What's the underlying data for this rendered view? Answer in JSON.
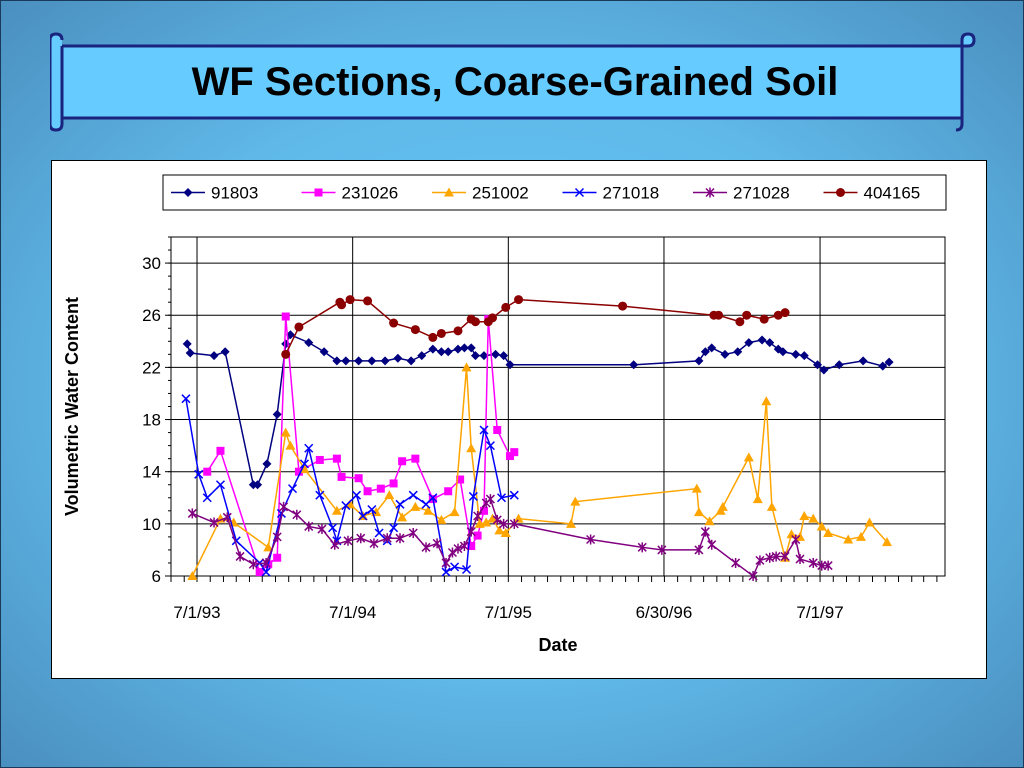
{
  "slide": {
    "title": "WF Sections, Coarse-Grained Soil"
  },
  "chart_data": {
    "type": "line",
    "title": "",
    "xlabel": "Date",
    "ylabel": "Volumetric Water Content",
    "ylim": [
      6,
      32
    ],
    "yticks": [
      6,
      10,
      14,
      18,
      22,
      26,
      30
    ],
    "xlim": [
      "1993-05-01",
      "1998-04-20"
    ],
    "xticks": [
      {
        "date": "1993-07-01",
        "label": "7/1/93"
      },
      {
        "date": "1994-07-01",
        "label": "7/1/94"
      },
      {
        "date": "1995-07-01",
        "label": "7/1/95"
      },
      {
        "date": "1996-06-30",
        "label": "6/30/96"
      },
      {
        "date": "1997-07-01",
        "label": "7/1/97"
      }
    ],
    "grid": true,
    "legend": "top",
    "series": [
      {
        "name": "91803",
        "color": "#000080",
        "marker": "diamond",
        "points": [
          [
            "1993-06-08",
            23.8
          ],
          [
            "1993-06-15",
            23.1
          ],
          [
            "1993-08-10",
            22.9
          ],
          [
            "1993-09-05",
            23.2
          ],
          [
            "1993-11-10",
            13.0
          ],
          [
            "1993-11-20",
            13.0
          ],
          [
            "1993-12-12",
            14.6
          ],
          [
            "1994-01-05",
            18.4
          ],
          [
            "1994-01-25",
            23.8
          ],
          [
            "1994-02-05",
            24.5
          ],
          [
            "1994-03-20",
            23.9
          ],
          [
            "1994-04-25",
            23.2
          ],
          [
            "1994-05-25",
            22.5
          ],
          [
            "1994-06-15",
            22.5
          ],
          [
            "1994-07-15",
            22.5
          ],
          [
            "1994-08-15",
            22.5
          ],
          [
            "1994-09-15",
            22.5
          ],
          [
            "1994-10-15",
            22.7
          ],
          [
            "1994-11-15",
            22.5
          ],
          [
            "1994-12-10",
            22.9
          ],
          [
            "1995-01-05",
            23.4
          ],
          [
            "1995-01-25",
            23.2
          ],
          [
            "1995-02-10",
            23.2
          ],
          [
            "1995-03-05",
            23.4
          ],
          [
            "1995-03-20",
            23.5
          ],
          [
            "1995-04-05",
            23.5
          ],
          [
            "1995-04-15",
            22.9
          ],
          [
            "1995-05-05",
            22.9
          ],
          [
            "1995-06-01",
            23.0
          ],
          [
            "1995-06-20",
            22.9
          ],
          [
            "1995-07-05",
            22.2
          ],
          [
            "1996-04-20",
            22.2
          ],
          [
            "1996-09-20",
            22.5
          ],
          [
            "1996-10-05",
            23.2
          ],
          [
            "1996-10-20",
            23.5
          ],
          [
            "1996-11-20",
            23.0
          ],
          [
            "1996-12-20",
            23.2
          ],
          [
            "1997-01-15",
            23.9
          ],
          [
            "1997-02-15",
            24.1
          ],
          [
            "1997-03-05",
            23.9
          ],
          [
            "1997-03-25",
            23.4
          ],
          [
            "1997-04-05",
            23.2
          ],
          [
            "1997-05-05",
            23.0
          ],
          [
            "1997-05-25",
            22.9
          ],
          [
            "1997-06-25",
            22.2
          ],
          [
            "1997-07-10",
            21.8
          ],
          [
            "1997-08-15",
            22.2
          ],
          [
            "1997-10-10",
            22.5
          ],
          [
            "1997-11-25",
            22.1
          ],
          [
            "1997-12-10",
            22.4
          ]
        ]
      },
      {
        "name": "231026",
        "color": "#ff00ff",
        "marker": "square",
        "points": [
          [
            "1993-07-25",
            14.0
          ],
          [
            "1993-08-25",
            15.6
          ],
          [
            "1993-11-25",
            6.3
          ],
          [
            "1993-12-15",
            6.9
          ],
          [
            "1994-01-05",
            7.4
          ],
          [
            "1994-01-25",
            25.9
          ],
          [
            "1994-02-25",
            14.0
          ],
          [
            "1994-04-15",
            14.9
          ],
          [
            "1994-05-25",
            15.0
          ],
          [
            "1994-06-05",
            13.6
          ],
          [
            "1994-07-15",
            13.5
          ],
          [
            "1994-08-05",
            12.5
          ],
          [
            "1994-09-05",
            12.7
          ],
          [
            "1994-10-05",
            13.1
          ],
          [
            "1994-10-25",
            14.8
          ],
          [
            "1994-11-25",
            15.0
          ],
          [
            "1995-01-05",
            11.9
          ],
          [
            "1995-02-10",
            12.5
          ],
          [
            "1995-03-10",
            13.4
          ],
          [
            "1995-04-05",
            8.3
          ],
          [
            "1995-04-20",
            9.1
          ],
          [
            "1995-05-05",
            11.0
          ],
          [
            "1995-05-15",
            25.7
          ],
          [
            "1995-06-05",
            17.2
          ],
          [
            "1995-07-05",
            15.2
          ],
          [
            "1995-07-15",
            15.5
          ]
        ]
      },
      {
        "name": "251002",
        "color": "#ffa500",
        "marker": "triangle",
        "points": [
          [
            "1993-06-20",
            6.0
          ],
          [
            "1993-08-25",
            10.4
          ],
          [
            "1993-09-25",
            10.1
          ],
          [
            "1993-12-15",
            8.2
          ],
          [
            "1994-01-25",
            17.0
          ],
          [
            "1994-02-05",
            16.0
          ],
          [
            "1994-03-10",
            14.2
          ],
          [
            "1994-05-25",
            11.0
          ],
          [
            "1994-06-25",
            11.5
          ],
          [
            "1994-07-25",
            10.6
          ],
          [
            "1994-08-25",
            10.9
          ],
          [
            "1994-09-25",
            12.2
          ],
          [
            "1994-10-25",
            10.5
          ],
          [
            "1994-11-25",
            11.3
          ],
          [
            "1994-12-25",
            11.0
          ],
          [
            "1995-01-25",
            10.3
          ],
          [
            "1995-02-25",
            10.9
          ],
          [
            "1995-03-25",
            22.0
          ],
          [
            "1995-04-05",
            15.8
          ],
          [
            "1995-04-25",
            10.0
          ],
          [
            "1995-05-10",
            10.1
          ],
          [
            "1995-05-25",
            10.4
          ],
          [
            "1995-06-10",
            9.5
          ],
          [
            "1995-06-25",
            9.3
          ],
          [
            "1995-07-25",
            10.4
          ],
          [
            "1995-11-25",
            10.0
          ],
          [
            "1995-12-05",
            11.7
          ],
          [
            "1996-09-15",
            12.7
          ],
          [
            "1996-09-20",
            10.9
          ],
          [
            "1996-10-15",
            10.2
          ],
          [
            "1996-11-10",
            11.0
          ],
          [
            "1996-11-15",
            11.3
          ],
          [
            "1997-01-15",
            15.1
          ],
          [
            "1997-02-05",
            11.9
          ],
          [
            "1997-02-25",
            19.4
          ],
          [
            "1997-03-10",
            11.3
          ],
          [
            "1997-04-10",
            7.4
          ],
          [
            "1997-04-25",
            9.2
          ],
          [
            "1997-05-15",
            9.0
          ],
          [
            "1997-05-25",
            10.6
          ],
          [
            "1997-06-15",
            10.4
          ],
          [
            "1997-07-05",
            9.8
          ],
          [
            "1997-07-20",
            9.3
          ],
          [
            "1997-09-05",
            8.8
          ],
          [
            "1997-10-05",
            9.0
          ],
          [
            "1997-10-25",
            10.1
          ],
          [
            "1997-12-05",
            8.6
          ]
        ]
      },
      {
        "name": "271018",
        "color": "#0000ff",
        "marker": "x",
        "points": [
          [
            "1993-06-05",
            19.6
          ],
          [
            "1993-07-05",
            13.8
          ],
          [
            "1993-07-25",
            12.0
          ],
          [
            "1993-08-25",
            13.0
          ],
          [
            "1993-10-01",
            8.7
          ],
          [
            "1993-11-25",
            7.0
          ],
          [
            "1993-12-10",
            6.3
          ],
          [
            "1994-01-15",
            10.8
          ],
          [
            "1994-02-10",
            12.7
          ],
          [
            "1994-03-10",
            14.6
          ],
          [
            "1994-03-20",
            15.8
          ],
          [
            "1994-04-15",
            12.2
          ],
          [
            "1994-05-15",
            9.7
          ],
          [
            "1994-05-25",
            8.7
          ],
          [
            "1994-06-15",
            11.4
          ],
          [
            "1994-07-10",
            12.2
          ],
          [
            "1994-07-25",
            10.6
          ],
          [
            "1994-08-15",
            11.1
          ],
          [
            "1994-09-01",
            9.3
          ],
          [
            "1994-09-20",
            8.7
          ],
          [
            "1994-10-05",
            9.7
          ],
          [
            "1994-10-20",
            11.5
          ],
          [
            "1994-11-20",
            12.2
          ],
          [
            "1994-12-20",
            11.5
          ],
          [
            "1995-01-05",
            12.0
          ],
          [
            "1995-02-05",
            6.3
          ],
          [
            "1995-02-25",
            6.7
          ],
          [
            "1995-03-25",
            6.5
          ],
          [
            "1995-04-10",
            12.1
          ],
          [
            "1995-05-05",
            17.2
          ],
          [
            "1995-05-20",
            16.0
          ],
          [
            "1995-06-15",
            12.0
          ],
          [
            "1995-07-15",
            12.2
          ]
        ]
      },
      {
        "name": "271028",
        "color": "#800080",
        "marker": "star",
        "points": [
          [
            "1993-06-20",
            10.8
          ],
          [
            "1993-08-10",
            10.1
          ],
          [
            "1993-09-10",
            10.5
          ],
          [
            "1993-10-10",
            7.5
          ],
          [
            "1993-11-10",
            6.9
          ],
          [
            "1993-12-10",
            7.0
          ],
          [
            "1994-01-05",
            9.0
          ],
          [
            "1994-01-20",
            11.3
          ],
          [
            "1994-02-20",
            10.7
          ],
          [
            "1994-03-20",
            9.8
          ],
          [
            "1994-04-20",
            9.6
          ],
          [
            "1994-05-20",
            8.4
          ],
          [
            "1994-06-20",
            8.7
          ],
          [
            "1994-07-20",
            8.9
          ],
          [
            "1994-08-20",
            8.5
          ],
          [
            "1994-09-20",
            8.9
          ],
          [
            "1994-10-20",
            8.9
          ],
          [
            "1994-11-20",
            9.3
          ],
          [
            "1994-12-20",
            8.2
          ],
          [
            "1995-01-15",
            8.5
          ],
          [
            "1995-02-05",
            7.0
          ],
          [
            "1995-02-20",
            7.8
          ],
          [
            "1995-03-05",
            8.1
          ],
          [
            "1995-03-20",
            8.3
          ],
          [
            "1995-04-05",
            9.4
          ],
          [
            "1995-04-20",
            10.6
          ],
          [
            "1995-05-10",
            11.6
          ],
          [
            "1995-05-20",
            11.9
          ],
          [
            "1995-06-05",
            10.3
          ],
          [
            "1995-06-20",
            10.0
          ],
          [
            "1995-07-15",
            10.0
          ],
          [
            "1996-01-10",
            8.8
          ],
          [
            "1996-05-10",
            8.2
          ],
          [
            "1996-06-25",
            8.0
          ],
          [
            "1996-09-20",
            8.0
          ],
          [
            "1996-10-05",
            9.4
          ],
          [
            "1996-10-20",
            8.4
          ],
          [
            "1996-12-15",
            7.0
          ],
          [
            "1997-01-25",
            6.0
          ],
          [
            "1997-02-10",
            7.2
          ],
          [
            "1997-03-05",
            7.4
          ],
          [
            "1997-03-20",
            7.5
          ],
          [
            "1997-04-10",
            7.5
          ],
          [
            "1997-05-05",
            8.8
          ],
          [
            "1997-05-15",
            7.3
          ],
          [
            "1997-06-15",
            7.0
          ],
          [
            "1997-07-05",
            6.8
          ],
          [
            "1997-07-20",
            6.8
          ]
        ]
      },
      {
        "name": "404165",
        "color": "#8b0000",
        "marker": "circle",
        "points": [
          [
            "1994-01-25",
            23.0
          ],
          [
            "1994-02-25",
            25.1
          ],
          [
            "1994-06-01",
            27.0
          ],
          [
            "1994-06-05",
            26.8
          ],
          [
            "1994-06-25",
            27.2
          ],
          [
            "1994-08-05",
            27.1
          ],
          [
            "1994-10-05",
            25.4
          ],
          [
            "1994-11-25",
            24.9
          ],
          [
            "1995-01-05",
            24.3
          ],
          [
            "1995-01-25",
            24.6
          ],
          [
            "1995-03-05",
            24.8
          ],
          [
            "1995-04-05",
            25.7
          ],
          [
            "1995-04-15",
            25.5
          ],
          [
            "1995-05-15",
            25.5
          ],
          [
            "1995-05-25",
            25.8
          ],
          [
            "1995-06-25",
            26.6
          ],
          [
            "1995-07-25",
            27.2
          ],
          [
            "1996-03-25",
            26.7
          ],
          [
            "1996-10-25",
            26.0
          ],
          [
            "1996-11-05",
            26.0
          ],
          [
            "1996-12-25",
            25.5
          ],
          [
            "1997-01-10",
            26.0
          ],
          [
            "1997-02-20",
            25.7
          ],
          [
            "1997-03-25",
            26.0
          ],
          [
            "1997-04-10",
            26.2
          ]
        ]
      }
    ]
  }
}
